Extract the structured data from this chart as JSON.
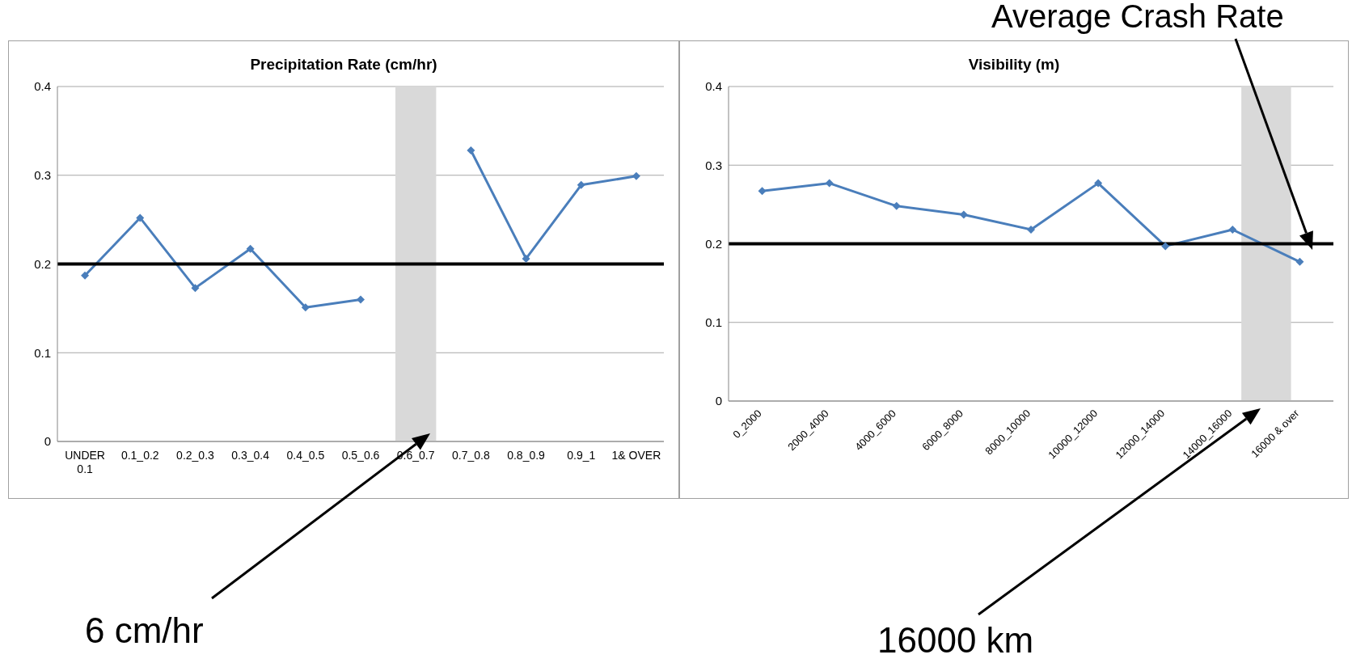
{
  "chart_data": [
    {
      "type": "line",
      "title": "Precipitation Rate (cm/hr)",
      "categories": [
        "UNDER 0.1",
        "0.1_0.2",
        "0.2_0.3",
        "0.3_0.4",
        "0.4_0.5",
        "0.5_0.6",
        "0.6_0.7",
        "0.7_0.8",
        "0.8_0.9",
        "0.9_1",
        "1& OVER"
      ],
      "series": [
        {
          "color": "#4a7ebb",
          "values": [
            0.187,
            0.252,
            0.173,
            0.217,
            0.151,
            0.16,
            null,
            0.328,
            0.206,
            0.289,
            0.299
          ]
        }
      ],
      "ylim": [
        0,
        0.4
      ],
      "yticks": [
        0,
        0.1,
        0.2,
        0.3,
        0.4
      ],
      "grid": "y",
      "legend": false,
      "marker": "diamond",
      "line_style": "solid",
      "ref_lines": [
        {
          "axis": "y",
          "value": 0.2,
          "color": "#000000"
        }
      ],
      "bands": [
        {
          "axis": "x",
          "from": "0.6_0.7",
          "to": "0.6_0.7",
          "color": "#d9d9d9"
        }
      ],
      "annotations": [
        "6 cm/hr"
      ]
    },
    {
      "type": "line",
      "title": "Visibility (m)",
      "categories": [
        "0_2000",
        "2000_4000",
        "4000_6000",
        "6000_8000",
        "8000_10000",
        "10000_12000",
        "12000_14000",
        "14000_16000",
        "16000 & over"
      ],
      "series": [
        {
          "color": "#4a7ebb",
          "values": [
            0.267,
            0.277,
            0.248,
            0.237,
            0.218,
            0.277,
            0.197,
            0.218,
            0.177
          ]
        }
      ],
      "ylim": [
        0,
        0.4
      ],
      "yticks": [
        0,
        0.1,
        0.2,
        0.3,
        0.4
      ],
      "grid": "y",
      "legend": false,
      "marker": "diamond",
      "line_style": "solid",
      "ref_lines": [
        {
          "axis": "y",
          "value": 0.2,
          "color": "#000000"
        }
      ],
      "bands": [
        {
          "axis": "x",
          "from": "14000_16000",
          "to": "16000 & over",
          "color": "#d9d9d9"
        }
      ],
      "annotations": [
        "16000 km",
        "Average Crash Rate"
      ]
    }
  ]
}
